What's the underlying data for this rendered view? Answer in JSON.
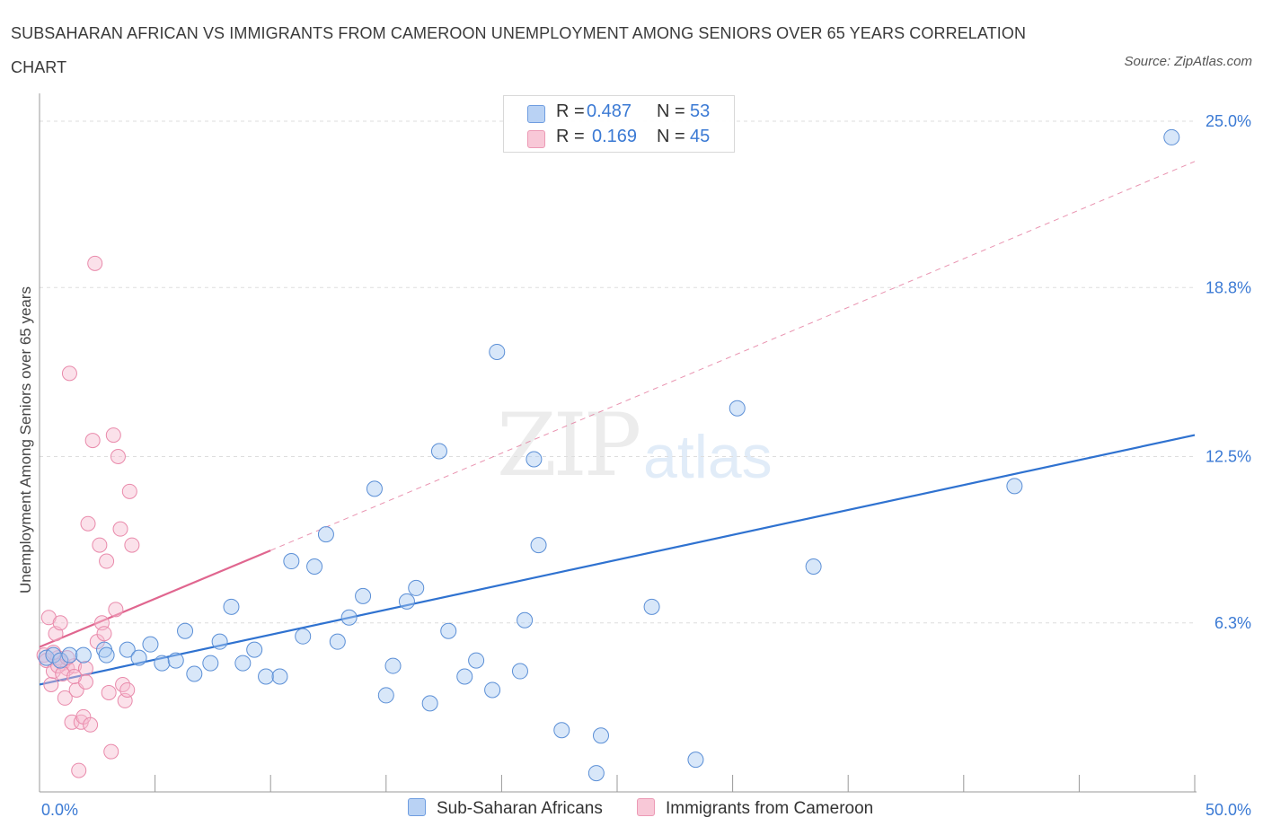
{
  "header": {
    "title": "SUBSAHARAN AFRICAN VS IMMIGRANTS FROM CAMEROON UNEMPLOYMENT AMONG SENIORS OVER 65 YEARS CORRELATION CHART",
    "source": "Source: ZipAtlas.com"
  },
  "watermark": {
    "zip": "ZIP",
    "atlas": "atlas"
  },
  "legend": {
    "rows": [
      {
        "r_label": "R =",
        "r_value": "0.487",
        "n_label": "N =",
        "n_value": "53"
      },
      {
        "r_label": "R =",
        "r_value": "0.169",
        "n_label": "N =",
        "n_value": "45"
      }
    ]
  },
  "bottom_legend": {
    "series1": "Sub-Saharan Africans",
    "series2": "Immigrants from Cameroon"
  },
  "colors": {
    "blue_fill": "#a9c9f2",
    "blue_stroke": "#5b8fd6",
    "blue_line": "#2f72d0",
    "pink_fill": "#f7bcd0",
    "pink_stroke": "#e98aab",
    "pink_line": "#e0668f",
    "tick_label": "#3b7ad4",
    "grid": "#dedede"
  },
  "chart_data": {
    "type": "scatter",
    "title": "SUBSAHARAN AFRICAN VS IMMIGRANTS FROM CAMEROON UNEMPLOYMENT AMONG SENIORS OVER 65 YEARS CORRELATION CHART",
    "xlabel": "",
    "ylabel": "Unemployment Among Seniors over 65 years",
    "xlim": [
      0,
      50
    ],
    "ylim": [
      0,
      26
    ],
    "x_tick_labels": [
      "0.0%",
      "50.0%"
    ],
    "y_ticks": [
      6.3,
      12.5,
      18.8,
      25.0
    ],
    "y_tick_labels": [
      "6.3%",
      "12.5%",
      "18.8%",
      "25.0%"
    ],
    "grid": true,
    "legend_position": "top-center",
    "series": [
      {
        "name": "Sub-Saharan Africans",
        "r": 0.487,
        "n": 53,
        "trend": {
          "x": [
            0,
            50
          ],
          "y": [
            4.0,
            13.3
          ]
        },
        "points": [
          [
            0.3,
            5.0
          ],
          [
            0.6,
            5.1
          ],
          [
            0.9,
            4.9
          ],
          [
            1.3,
            5.1
          ],
          [
            1.9,
            5.1
          ],
          [
            2.8,
            5.3
          ],
          [
            2.9,
            5.1
          ],
          [
            3.8,
            5.3
          ],
          [
            4.3,
            5.0
          ],
          [
            4.8,
            5.5
          ],
          [
            5.3,
            4.8
          ],
          [
            5.9,
            4.9
          ],
          [
            6.3,
            6.0
          ],
          [
            6.7,
            4.4
          ],
          [
            7.4,
            4.8
          ],
          [
            7.8,
            5.6
          ],
          [
            8.3,
            6.9
          ],
          [
            8.8,
            4.8
          ],
          [
            9.3,
            5.3
          ],
          [
            9.8,
            4.3
          ],
          [
            10.4,
            4.3
          ],
          [
            10.9,
            8.6
          ],
          [
            11.4,
            5.8
          ],
          [
            11.9,
            8.4
          ],
          [
            12.4,
            9.6
          ],
          [
            12.9,
            5.6
          ],
          [
            13.4,
            6.5
          ],
          [
            14.0,
            7.3
          ],
          [
            14.5,
            11.3
          ],
          [
            15.0,
            3.6
          ],
          [
            15.3,
            4.7
          ],
          [
            15.9,
            7.1
          ],
          [
            16.3,
            7.6
          ],
          [
            16.9,
            3.3
          ],
          [
            17.3,
            12.7
          ],
          [
            17.7,
            6.0
          ],
          [
            18.4,
            4.3
          ],
          [
            18.9,
            4.9
          ],
          [
            19.6,
            3.8
          ],
          [
            19.8,
            16.4
          ],
          [
            20.8,
            4.5
          ],
          [
            21.0,
            6.4
          ],
          [
            21.4,
            12.4
          ],
          [
            21.6,
            9.2
          ],
          [
            22.6,
            2.3
          ],
          [
            24.3,
            2.1
          ],
          [
            24.1,
            0.7
          ],
          [
            26.5,
            6.9
          ],
          [
            28.4,
            1.2
          ],
          [
            30.2,
            14.3
          ],
          [
            33.5,
            8.4
          ],
          [
            42.2,
            11.4
          ],
          [
            49.0,
            24.4
          ]
        ]
      },
      {
        "name": "Immigrants from Cameroon",
        "r": 0.169,
        "n": 45,
        "trend": {
          "x": [
            0,
            10
          ],
          "y": [
            5.4,
            9.0
          ],
          "extended": {
            "x": [
              10,
              50
            ],
            "y": [
              9.0,
              23.5
            ]
          }
        },
        "points": [
          [
            0.2,
            5.1
          ],
          [
            0.3,
            4.9
          ],
          [
            0.4,
            6.5
          ],
          [
            0.5,
            4.0
          ],
          [
            0.6,
            4.5
          ],
          [
            0.7,
            5.9
          ],
          [
            0.8,
            5.0
          ],
          [
            0.9,
            6.3
          ],
          [
            1.0,
            4.8
          ],
          [
            1.1,
            3.5
          ],
          [
            1.2,
            4.6
          ],
          [
            1.3,
            15.6
          ],
          [
            1.4,
            2.6
          ],
          [
            1.5,
            4.7
          ],
          [
            1.6,
            3.8
          ],
          [
            1.7,
            0.8
          ],
          [
            1.8,
            2.6
          ],
          [
            1.9,
            2.8
          ],
          [
            2.0,
            4.6
          ],
          [
            2.0,
            4.1
          ],
          [
            2.1,
            10.0
          ],
          [
            2.2,
            2.5
          ],
          [
            2.3,
            13.1
          ],
          [
            2.4,
            19.7
          ],
          [
            2.5,
            5.6
          ],
          [
            2.6,
            9.2
          ],
          [
            2.7,
            6.3
          ],
          [
            2.8,
            5.9
          ],
          [
            2.9,
            8.6
          ],
          [
            3.0,
            3.7
          ],
          [
            3.1,
            1.5
          ],
          [
            3.2,
            13.3
          ],
          [
            3.3,
            6.8
          ],
          [
            3.4,
            12.5
          ],
          [
            3.5,
            9.8
          ],
          [
            3.6,
            4.0
          ],
          [
            3.7,
            3.4
          ],
          [
            3.8,
            3.8
          ],
          [
            3.9,
            11.2
          ],
          [
            4.0,
            9.2
          ],
          [
            0.6,
            5.2
          ],
          [
            0.8,
            4.7
          ],
          [
            1.0,
            4.4
          ],
          [
            1.2,
            5.0
          ],
          [
            1.5,
            4.3
          ]
        ]
      }
    ]
  }
}
